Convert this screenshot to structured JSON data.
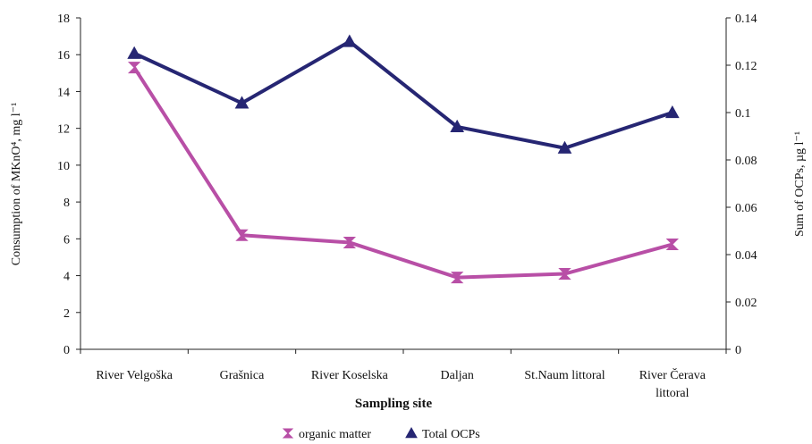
{
  "chart_data": {
    "type": "line",
    "title": "",
    "categories": [
      "River Velgoška",
      "Grašnica",
      "River Koselska",
      "Daljan",
      "St.Naum littoral",
      "River Čerava littoral"
    ],
    "category_lines": [
      [
        "River Velgoška"
      ],
      [
        "Grašnica"
      ],
      [
        "River Koselska"
      ],
      [
        "Daljan"
      ],
      [
        "St.Naum littoral"
      ],
      [
        "River Čerava",
        "littoral"
      ]
    ],
    "xlabel": "Sampling site",
    "ylabel_left": "Consumption of MKnO⁴, mg l⁻¹",
    "ylabel_right": "Sum of OCPs, µg l⁻¹",
    "ylim_left": [
      0,
      18
    ],
    "ylim_right": [
      0,
      0.14
    ],
    "yticks_left": [
      "0",
      "2",
      "4",
      "6",
      "8",
      "10",
      "12",
      "14",
      "16",
      "18"
    ],
    "yticks_right": [
      "0",
      "0.02",
      "0.04",
      "0.06",
      "0.08",
      "0.1",
      "0.12",
      "0.14"
    ],
    "grid": false,
    "legend_position": "bottom",
    "series": [
      {
        "name": "organic matter",
        "axis": "left",
        "color": "#b84fa6",
        "marker": "hourglass",
        "values": [
          15.3,
          6.2,
          5.8,
          3.9,
          4.1,
          5.7
        ]
      },
      {
        "name": "Total OCPs",
        "axis": "right",
        "color": "#262673",
        "marker": "triangle",
        "values": [
          0.125,
          0.104,
          0.13,
          0.094,
          0.085,
          0.1
        ]
      }
    ]
  }
}
